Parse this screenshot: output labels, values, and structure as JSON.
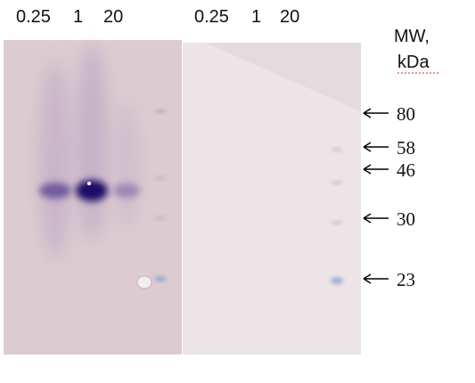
{
  "lanes_left": [
    "0.25",
    "1",
    "20"
  ],
  "lanes_right": [
    "0.25",
    "1",
    "20"
  ],
  "mw_title": [
    "MW,",
    "kDa"
  ],
  "markers": [
    "80",
    "58",
    "46",
    "30",
    "23"
  ]
}
